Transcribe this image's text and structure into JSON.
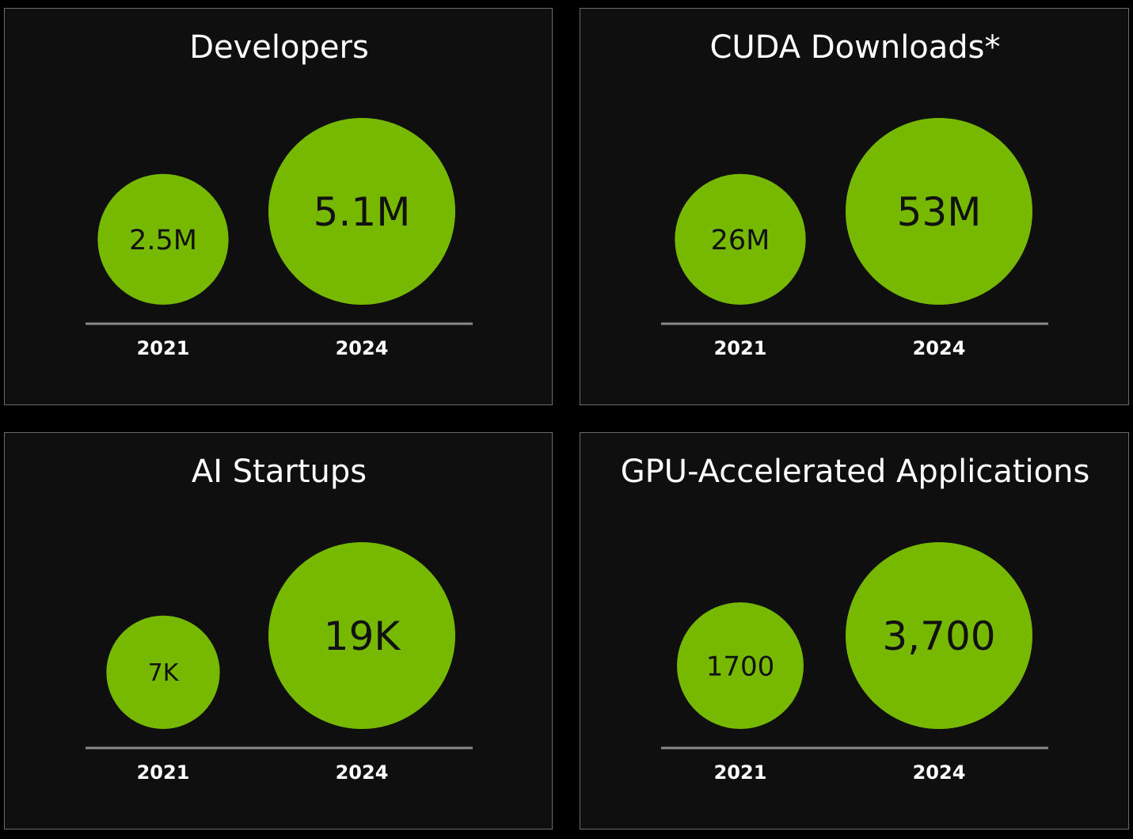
{
  "colors": {
    "bubble": "#76b900",
    "background": "#000000",
    "panel": "#0f0f0f",
    "axis": "#8a8a8a"
  },
  "chart_data": [
    {
      "type": "bubble",
      "title": "Developers",
      "categories": [
        "2021",
        "2024"
      ],
      "values": [
        2.5,
        5.1
      ],
      "unit": "M",
      "labels": [
        "2.5M",
        "5.1M"
      ]
    },
    {
      "type": "bubble",
      "title": "CUDA Downloads*",
      "categories": [
        "2021",
        "2024"
      ],
      "values": [
        26,
        53
      ],
      "unit": "M",
      "labels": [
        "26M",
        "53M"
      ]
    },
    {
      "type": "bubble",
      "title": "AI Startups",
      "categories": [
        "2021",
        "2024"
      ],
      "values": [
        7,
        19
      ],
      "unit": "K",
      "labels": [
        "7K",
        "19K"
      ]
    },
    {
      "type": "bubble",
      "title": "GPU-Accelerated Applications",
      "categories": [
        "2021",
        "2024"
      ],
      "values": [
        1700,
        3700
      ],
      "unit": "",
      "labels": [
        "1700",
        "3,700"
      ]
    }
  ]
}
